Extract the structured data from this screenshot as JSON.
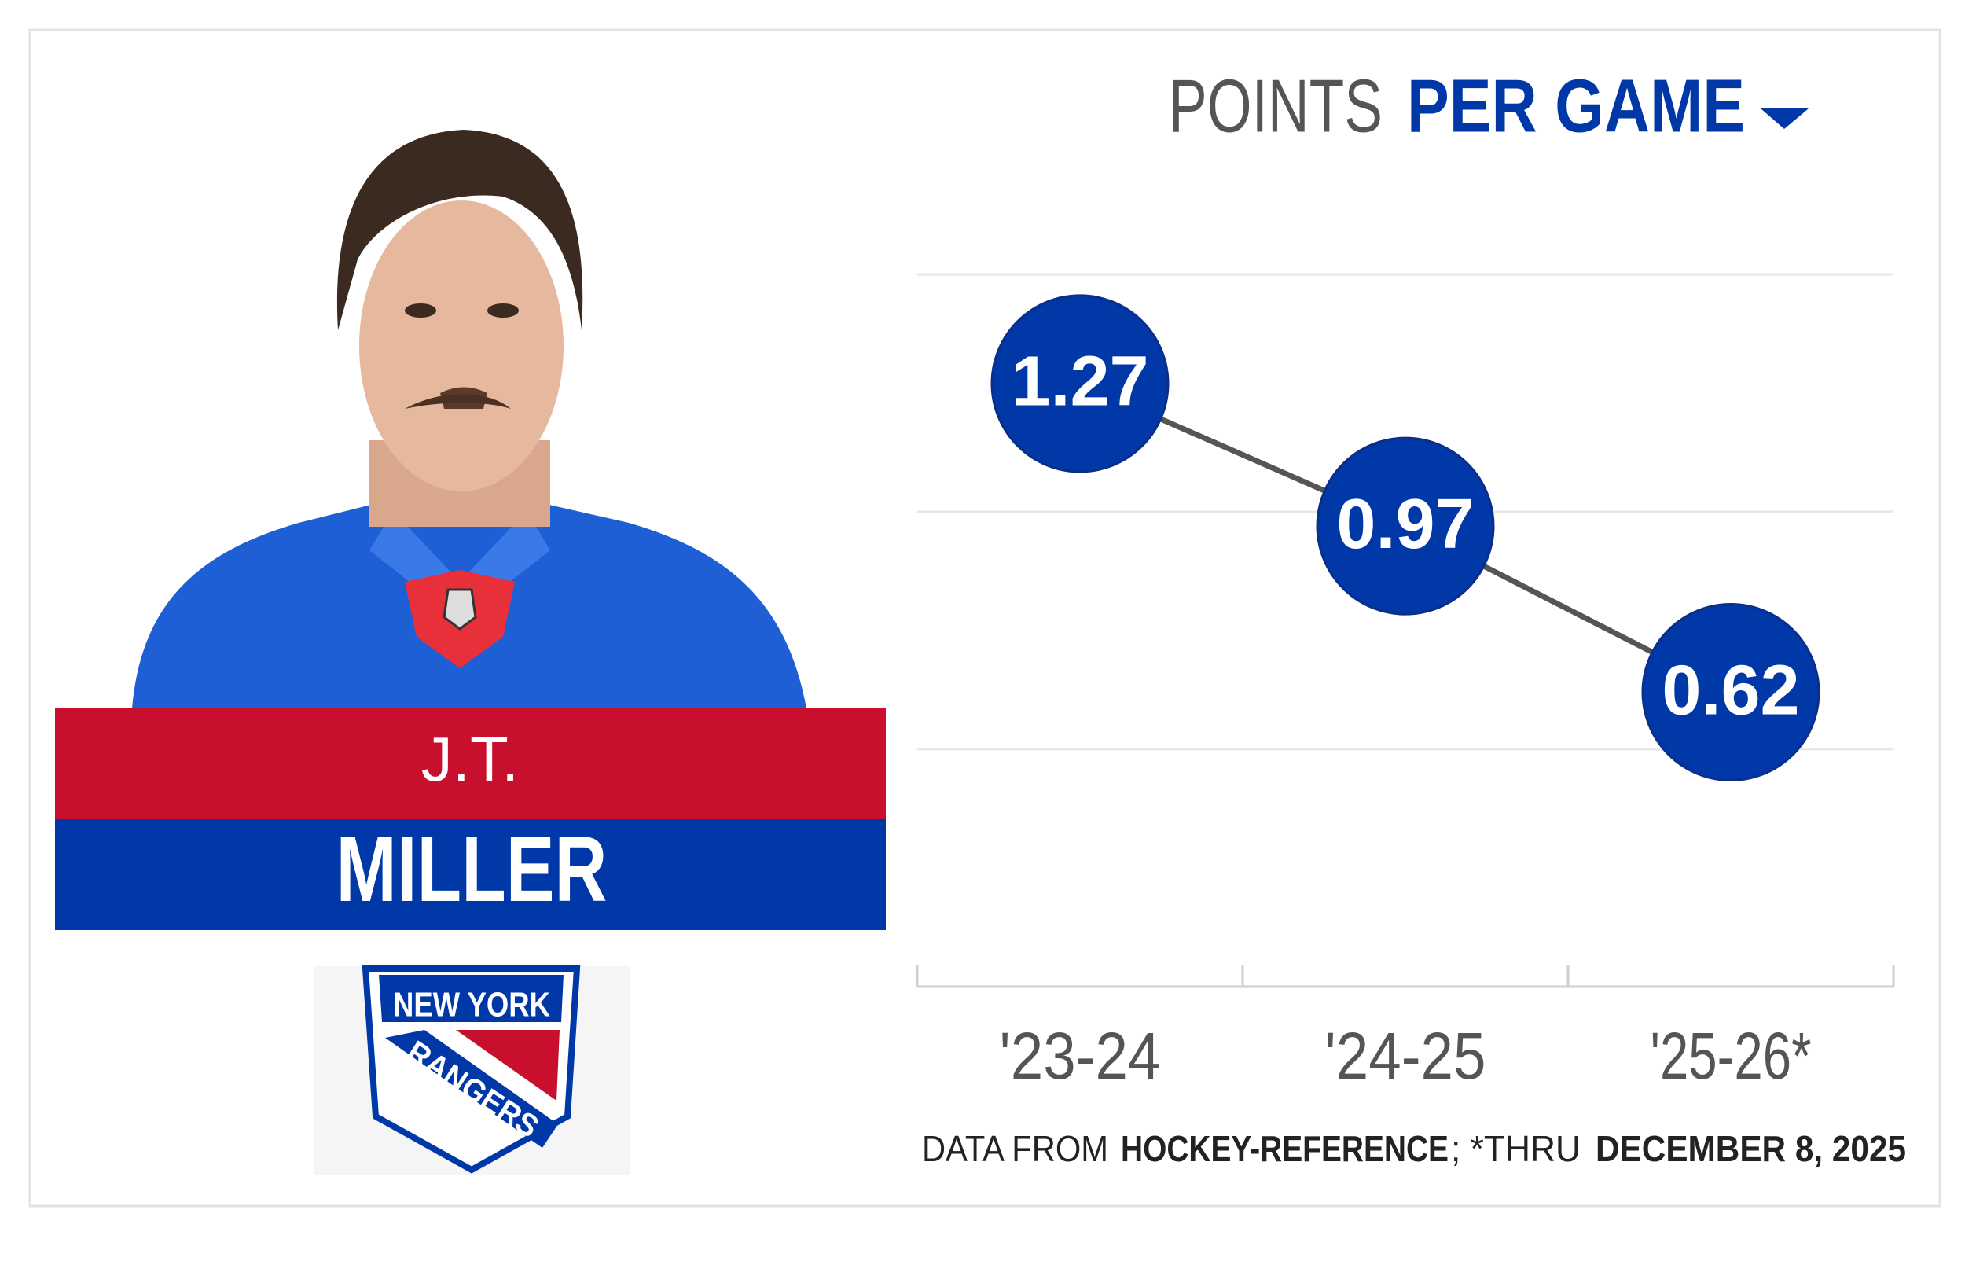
{
  "chart_data": {
    "type": "line",
    "title": "POINTS",
    "title_highlight": "PER GAME",
    "categories": [
      "'23-24",
      "'24-25",
      "'25-26*"
    ],
    "values": [
      1.27,
      0.97,
      0.62
    ],
    "color": "#0038a8",
    "line_color": "#555555",
    "ylim": [
      0,
      1.5
    ],
    "yticks": [
      0.5,
      1,
      1.5
    ],
    "grid": true
  },
  "player": {
    "first_name": "J.T.",
    "last_name": "MILLER",
    "team_logo": [
      "NEW YORK",
      "RANGERS"
    ]
  },
  "source": {
    "prefix": "DATA FROM",
    "site": "HOCKEY-REFERENCE",
    "note": "; *THRU",
    "date": "DECEMBER 8, 2025"
  }
}
